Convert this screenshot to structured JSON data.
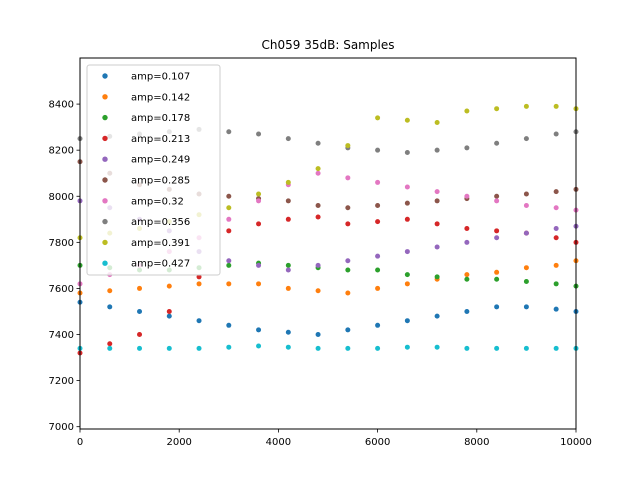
{
  "chart_data": {
    "type": "scatter",
    "title": "Ch059 35dB: Samples",
    "xlabel": "",
    "ylabel": "",
    "xlim": [
      0,
      10000
    ],
    "ylim": [
      6990,
      8600
    ],
    "x_ticks": [
      0,
      2000,
      4000,
      6000,
      8000,
      10000
    ],
    "x_tick_labels": [
      "0",
      "2000",
      "4000",
      "6000",
      "8000",
      "10000"
    ],
    "y_ticks": [
      7000,
      7200,
      7400,
      7600,
      7800,
      8000,
      8200,
      8400
    ],
    "y_tick_labels": [
      "7000",
      "7200",
      "7400",
      "7600",
      "7800",
      "8000",
      "8200",
      "8400"
    ],
    "legend_position": "upper-left",
    "series": [
      {
        "name": "amp=0.107",
        "color": "#1f77b4",
        "x": [
          0,
          600,
          1200,
          1800,
          2400,
          3000,
          3600,
          4200,
          4800,
          5400,
          6000,
          6600,
          7200,
          7800,
          8400,
          9000,
          9600,
          10000
        ],
        "y": [
          7540,
          7520,
          7500,
          7480,
          7460,
          7440,
          7420,
          7410,
          7400,
          7420,
          7440,
          7460,
          7480,
          7500,
          7520,
          7520,
          7510,
          7500
        ]
      },
      {
        "name": "amp=0.142",
        "color": "#ff7f0e",
        "x": [
          0,
          600,
          1200,
          1800,
          2400,
          3000,
          3600,
          4200,
          4800,
          5400,
          6000,
          6600,
          7200,
          7800,
          8400,
          9000,
          9600,
          10000
        ],
        "y": [
          7580,
          7590,
          7600,
          7610,
          7620,
          7620,
          7620,
          7600,
          7590,
          7580,
          7600,
          7620,
          7640,
          7660,
          7670,
          7690,
          7700,
          7720
        ]
      },
      {
        "name": "amp=0.178",
        "color": "#2ca02c",
        "x": [
          0,
          600,
          1200,
          1800,
          2400,
          3000,
          3600,
          4200,
          4800,
          5400,
          6000,
          6600,
          7200,
          7800,
          8400,
          9000,
          9600,
          10000
        ],
        "y": [
          7700,
          7690,
          7680,
          7680,
          7690,
          7700,
          7710,
          7700,
          7690,
          7680,
          7680,
          7660,
          7650,
          7640,
          7640,
          7630,
          7620,
          7610
        ]
      },
      {
        "name": "amp=0.213",
        "color": "#d62728",
        "x": [
          0,
          600,
          1200,
          1800,
          2400,
          3000,
          3600,
          4200,
          4800,
          5400,
          6000,
          6600,
          7200,
          7800,
          8400,
          9000,
          9600,
          10000
        ],
        "y": [
          7320,
          7360,
          7400,
          7500,
          7650,
          7850,
          7880,
          7900,
          7910,
          7880,
          7890,
          7900,
          7880,
          7860,
          7850,
          7840,
          7820,
          7800
        ]
      },
      {
        "name": "amp=0.249",
        "color": "#9467bd",
        "x": [
          0,
          600,
          1200,
          1800,
          2400,
          3000,
          3600,
          4200,
          4800,
          5400,
          6000,
          6600,
          7200,
          7800,
          8400,
          9000,
          9600,
          10000
        ],
        "y": [
          7980,
          7950,
          7900,
          7850,
          7760,
          7720,
          7700,
          7680,
          7700,
          7720,
          7740,
          7760,
          7780,
          7800,
          7820,
          7840,
          7860,
          7870
        ]
      },
      {
        "name": "amp=0.285",
        "color": "#8c564b",
        "x": [
          0,
          600,
          1200,
          1800,
          2400,
          3000,
          3600,
          4200,
          4800,
          5400,
          6000,
          6600,
          7200,
          7800,
          8400,
          9000,
          9600,
          10000
        ],
        "y": [
          8150,
          8100,
          8050,
          8030,
          8010,
          8000,
          7990,
          7980,
          7960,
          7950,
          7960,
          7970,
          7980,
          7990,
          8000,
          8010,
          8020,
          8030
        ]
      },
      {
        "name": "amp=0.32",
        "color": "#e377c2",
        "x": [
          0,
          600,
          1200,
          1800,
          2400,
          3000,
          3600,
          4200,
          4800,
          5400,
          6000,
          6600,
          7200,
          7800,
          8400,
          9000,
          9600,
          10000
        ],
        "y": [
          7620,
          7660,
          7700,
          7760,
          7820,
          7900,
          7980,
          8050,
          8100,
          8080,
          8060,
          8040,
          8020,
          8000,
          7980,
          7960,
          7950,
          7940
        ]
      },
      {
        "name": "amp=0.356",
        "color": "#7f7f7f",
        "x": [
          0,
          600,
          1200,
          1800,
          2400,
          3000,
          3600,
          4200,
          4800,
          5400,
          6000,
          6600,
          7200,
          7800,
          8400,
          9000,
          9600,
          10000
        ],
        "y": [
          8250,
          8260,
          8270,
          8280,
          8290,
          8280,
          8270,
          8250,
          8230,
          8210,
          8200,
          8190,
          8200,
          8210,
          8230,
          8250,
          8270,
          8280
        ]
      },
      {
        "name": "amp=0.391",
        "color": "#bcbd22",
        "x": [
          0,
          600,
          1200,
          1800,
          2400,
          3000,
          3600,
          4200,
          4800,
          5400,
          6000,
          6600,
          7200,
          7800,
          8400,
          9000,
          9600,
          10000
        ],
        "y": [
          7820,
          7840,
          7860,
          7890,
          7920,
          7950,
          8010,
          8060,
          8120,
          8220,
          8340,
          8330,
          8320,
          8370,
          8380,
          8390,
          8390,
          8380
        ]
      },
      {
        "name": "amp=0.427",
        "color": "#17becf",
        "x": [
          0,
          600,
          1200,
          1800,
          2400,
          3000,
          3600,
          4200,
          4800,
          5400,
          6000,
          6600,
          7200,
          7800,
          8400,
          9000,
          9600,
          10000
        ],
        "y": [
          7340,
          7340,
          7340,
          7340,
          7340,
          7345,
          7350,
          7345,
          7340,
          7340,
          7340,
          7345,
          7345,
          7340,
          7340,
          7340,
          7340,
          7340
        ]
      }
    ]
  }
}
